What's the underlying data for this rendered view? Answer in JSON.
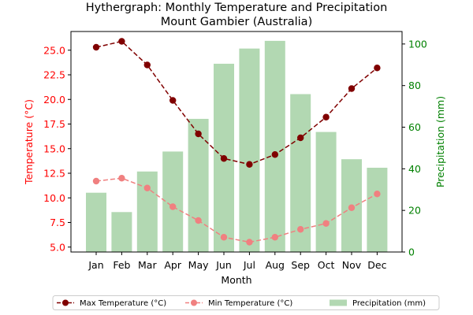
{
  "chart_data": {
    "type": "bar+line",
    "title_line1": "Hythergraph: Monthly Temperature and Precipitation",
    "title_line2": "Mount Gambier (Australia)",
    "xlabel": "Month",
    "ylabel_left": "Temperature (°C)",
    "ylabel_right": "Precipitation (mm)",
    "categories": [
      "Jan",
      "Feb",
      "Mar",
      "Apr",
      "May",
      "Jun",
      "Jul",
      "Aug",
      "Sep",
      "Oct",
      "Nov",
      "Dec"
    ],
    "y_left_lim": [
      4.5,
      26.9
    ],
    "y_left_ticks": [
      "5.0",
      "7.5",
      "10.0",
      "12.5",
      "15.0",
      "17.5",
      "20.0",
      "22.5",
      "25.0"
    ],
    "y_right_lim": [
      0,
      106
    ],
    "y_right_ticks": [
      "0",
      "20",
      "40",
      "60",
      "80",
      "100"
    ],
    "series": [
      {
        "name": "Max Temperature (°C)",
        "kind": "line",
        "axis": "left",
        "color": "#800000",
        "line_style": "dashed",
        "values": [
          25.3,
          25.9,
          23.5,
          19.9,
          16.5,
          14.0,
          13.4,
          14.4,
          16.1,
          18.2,
          21.1,
          23.2
        ]
      },
      {
        "name": "Min Temperature (°C)",
        "kind": "line",
        "axis": "left",
        "color": "#f08080",
        "line_style": "dashed",
        "values": [
          11.7,
          12.0,
          11.0,
          9.1,
          7.7,
          6.0,
          5.5,
          6.0,
          6.8,
          7.4,
          9.0,
          10.4
        ]
      },
      {
        "name": "Precipitation (mm)",
        "kind": "bar",
        "axis": "right",
        "color": "#b2d8b2",
        "values": [
          28.5,
          19.2,
          38.7,
          48.3,
          64.0,
          90.5,
          97.8,
          101.5,
          75.9,
          57.7,
          44.6,
          40.5
        ]
      }
    ],
    "left_axis_color": "#ff0000",
    "right_axis_color": "#008000",
    "legend_placement": "bottom-center"
  }
}
